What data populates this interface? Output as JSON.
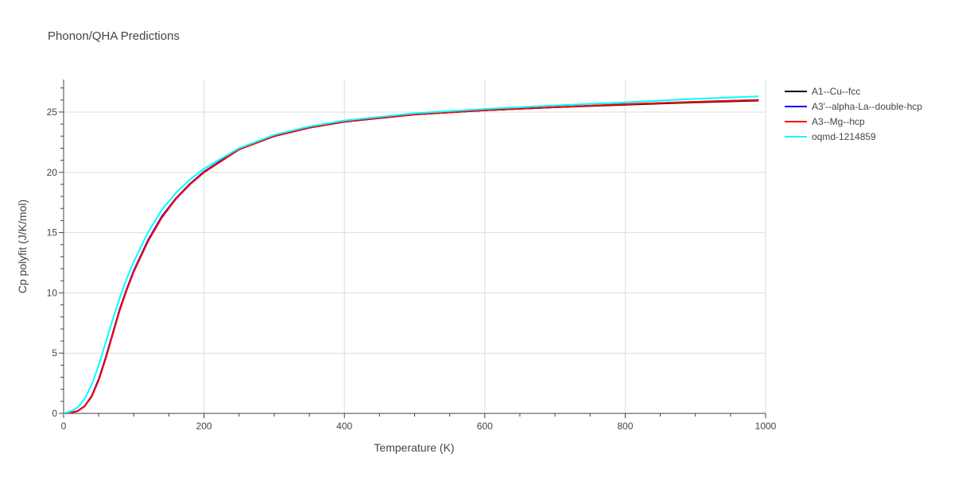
{
  "chart_data": {
    "type": "line",
    "title": "Phonon/QHA Predictions",
    "xlabel": "Temperature (K)",
    "ylabel": "Cp polyfit (J/K/mol)",
    "xlim": [
      0,
      1000
    ],
    "ylim": [
      0,
      27.7
    ],
    "xticks": [
      0,
      200,
      400,
      600,
      800,
      1000
    ],
    "yticks": [
      0,
      5,
      10,
      15,
      20,
      25
    ],
    "grid": true,
    "legend_position": "top-right",
    "series": [
      {
        "name": "A1--Cu--fcc",
        "color": "#000000",
        "x": [
          0,
          10,
          20,
          30,
          40,
          50,
          60,
          70,
          80,
          90,
          100,
          120,
          140,
          160,
          180,
          200,
          250,
          300,
          350,
          400,
          500,
          600,
          700,
          800,
          900,
          990
        ],
        "y": [
          0,
          0.05,
          0.2,
          0.6,
          1.4,
          2.8,
          4.6,
          6.6,
          8.6,
          10.3,
          11.8,
          14.3,
          16.3,
          17.8,
          19.0,
          20.0,
          21.9,
          23.0,
          23.7,
          24.2,
          24.8,
          25.15,
          25.4,
          25.6,
          25.8,
          25.95
        ]
      },
      {
        "name": "A3'--alpha-La--double-hcp",
        "color": "#0000ff",
        "x": [
          0,
          10,
          20,
          30,
          40,
          50,
          60,
          70,
          80,
          90,
          100,
          120,
          140,
          160,
          180,
          200,
          250,
          300,
          350,
          400,
          500,
          600,
          700,
          800,
          900,
          990
        ],
        "y": [
          0,
          0.05,
          0.2,
          0.6,
          1.45,
          2.85,
          4.65,
          6.65,
          8.65,
          10.35,
          11.85,
          14.35,
          16.35,
          17.85,
          19.05,
          20.05,
          21.95,
          23.0,
          23.7,
          24.2,
          24.8,
          25.15,
          25.4,
          25.65,
          25.85,
          26.0
        ]
      },
      {
        "name": "A3--Mg--hcp",
        "color": "#ff0000",
        "x": [
          0,
          10,
          20,
          30,
          40,
          50,
          60,
          70,
          80,
          90,
          100,
          120,
          140,
          160,
          180,
          200,
          250,
          300,
          350,
          400,
          500,
          600,
          700,
          800,
          900,
          990
        ],
        "y": [
          0,
          0.05,
          0.2,
          0.6,
          1.4,
          2.75,
          4.55,
          6.55,
          8.55,
          10.25,
          11.75,
          14.25,
          16.25,
          17.8,
          19.0,
          20.0,
          21.9,
          23.0,
          23.7,
          24.2,
          24.8,
          25.15,
          25.4,
          25.65,
          25.85,
          26.0
        ]
      },
      {
        "name": "oqmd-1214859",
        "color": "#00ffff",
        "x": [
          0,
          10,
          20,
          30,
          40,
          50,
          60,
          70,
          80,
          90,
          100,
          120,
          140,
          160,
          180,
          200,
          250,
          300,
          350,
          400,
          500,
          600,
          700,
          800,
          900,
          990
        ],
        "y": [
          0,
          0.15,
          0.5,
          1.2,
          2.4,
          4.0,
          5.9,
          7.8,
          9.6,
          11.2,
          12.6,
          15.0,
          16.9,
          18.3,
          19.4,
          20.3,
          22.0,
          23.1,
          23.8,
          24.3,
          24.9,
          25.25,
          25.55,
          25.8,
          26.1,
          26.3
        ]
      }
    ]
  }
}
